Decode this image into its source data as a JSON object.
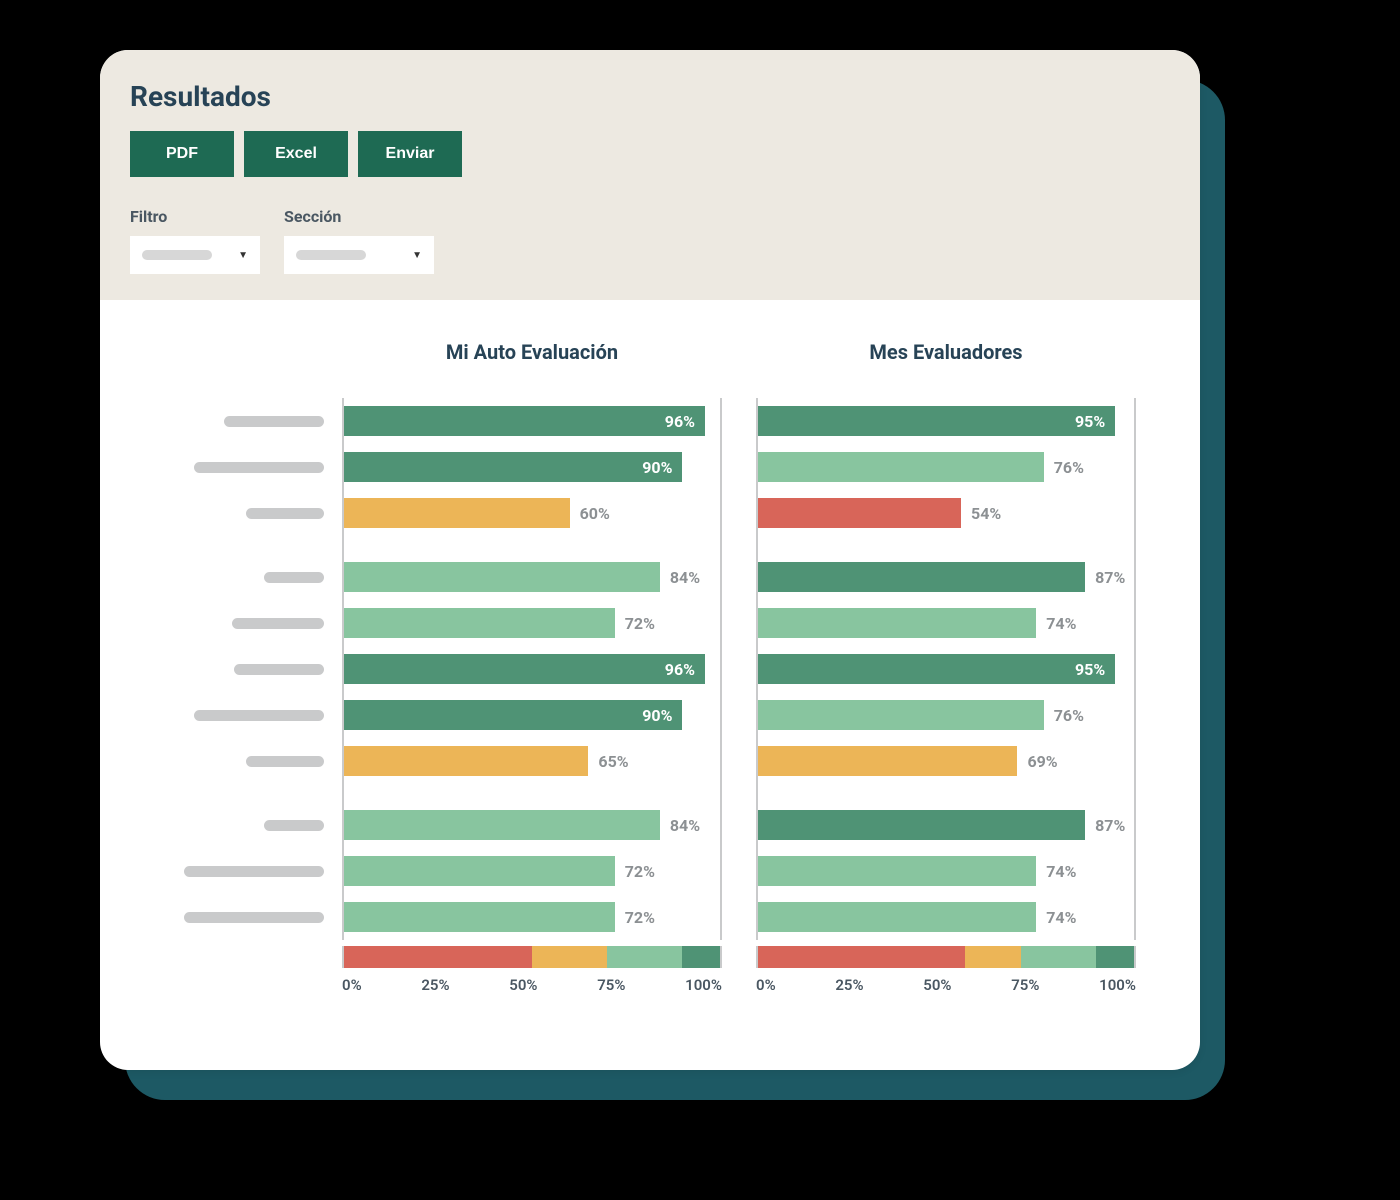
{
  "title": "Resultados",
  "buttons": {
    "pdf": "PDF",
    "excel": "Excel",
    "send": "Enviar"
  },
  "filters": {
    "filtro_label": "Filtro",
    "seccion_label": "Sección"
  },
  "colors": {
    "dark_green": "#4f9375",
    "light_green": "#88c59f",
    "yellow": "#ecb557",
    "red": "#d86559",
    "axis_text": "#4a5762",
    "outside_label": "#8c9093",
    "placeholder": "#c9cacb",
    "card_bg": "#ffffff",
    "header_bg": "#ede9e1",
    "shadow_card": "#1d5964",
    "title_color": "#274356",
    "btn_bg": "#1e6a53"
  },
  "row_label_widths": [
    100,
    130,
    78,
    60,
    92,
    90,
    130,
    78,
    60,
    140,
    140
  ],
  "group_break_after": [
    2,
    7
  ],
  "charts": [
    {
      "title": "Mi Auto Evaluación",
      "bars": [
        {
          "value": 96,
          "color": "#4f9375",
          "label_inside": true
        },
        {
          "value": 90,
          "color": "#4f9375",
          "label_inside": true
        },
        {
          "value": 60,
          "color": "#ecb557",
          "label_inside": false
        },
        {
          "value": 84,
          "color": "#88c59f",
          "label_inside": false
        },
        {
          "value": 72,
          "color": "#88c59f",
          "label_inside": false
        },
        {
          "value": 96,
          "color": "#4f9375",
          "label_inside": true
        },
        {
          "value": 90,
          "color": "#4f9375",
          "label_inside": true
        },
        {
          "value": 65,
          "color": "#ecb557",
          "label_inside": false
        },
        {
          "value": 84,
          "color": "#88c59f",
          "label_inside": false
        },
        {
          "value": 72,
          "color": "#88c59f",
          "label_inside": false
        },
        {
          "value": 72,
          "color": "#88c59f",
          "label_inside": false
        }
      ],
      "legend_segments": [
        {
          "color": "#d86559",
          "pct": 50
        },
        {
          "color": "#ecb557",
          "pct": 20
        },
        {
          "color": "#88c59f",
          "pct": 20
        },
        {
          "color": "#4f9375",
          "pct": 10
        }
      ],
      "axis_ticks": [
        "0%",
        "25%",
        "50%",
        "75%",
        "100%"
      ]
    },
    {
      "title": "Mes Evaluadores",
      "bars": [
        {
          "value": 95,
          "color": "#4f9375",
          "label_inside": true
        },
        {
          "value": 76,
          "color": "#88c59f",
          "label_inside": false
        },
        {
          "value": 54,
          "color": "#d86559",
          "label_inside": false
        },
        {
          "value": 87,
          "color": "#4f9375",
          "label_inside": false
        },
        {
          "value": 74,
          "color": "#88c59f",
          "label_inside": false
        },
        {
          "value": 95,
          "color": "#4f9375",
          "label_inside": true
        },
        {
          "value": 76,
          "color": "#88c59f",
          "label_inside": false
        },
        {
          "value": 69,
          "color": "#ecb557",
          "label_inside": false
        },
        {
          "value": 87,
          "color": "#4f9375",
          "label_inside": false
        },
        {
          "value": 74,
          "color": "#88c59f",
          "label_inside": false
        },
        {
          "value": 74,
          "color": "#88c59f",
          "label_inside": false
        }
      ],
      "legend_segments": [
        {
          "color": "#d86559",
          "pct": 55
        },
        {
          "color": "#ecb557",
          "pct": 15
        },
        {
          "color": "#88c59f",
          "pct": 20
        },
        {
          "color": "#4f9375",
          "pct": 10
        }
      ],
      "axis_ticks": [
        "0%",
        "25%",
        "50%",
        "75%",
        "100%"
      ]
    }
  ]
}
